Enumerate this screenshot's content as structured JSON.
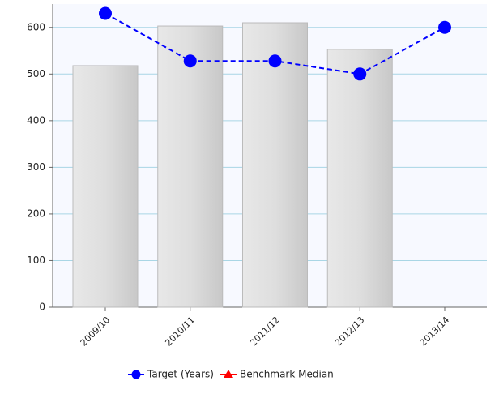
{
  "chart_data": {
    "type": "combo",
    "categories": [
      "2009/10",
      "2010/11",
      "2011/12",
      "2012/13",
      "2013/14"
    ],
    "series": [
      {
        "type": "bar",
        "color": "#d6d6d6",
        "values": [
          518,
          603,
          610,
          553,
          null
        ]
      },
      {
        "type": "line",
        "name": "Target (Years)",
        "color": "#0000ff",
        "marker": "circle",
        "dashed": true,
        "values": [
          630,
          528,
          528,
          500,
          600
        ]
      },
      {
        "type": "line",
        "name": "Benchmark Median",
        "color": "#ff0000",
        "marker": "triangle",
        "values": [
          null,
          null,
          null,
          null,
          null
        ]
      }
    ],
    "ylim": [
      0,
      650
    ],
    "yticks": [
      0,
      100,
      200,
      300,
      400,
      500,
      600
    ],
    "grid": true,
    "legend": "bottom"
  }
}
